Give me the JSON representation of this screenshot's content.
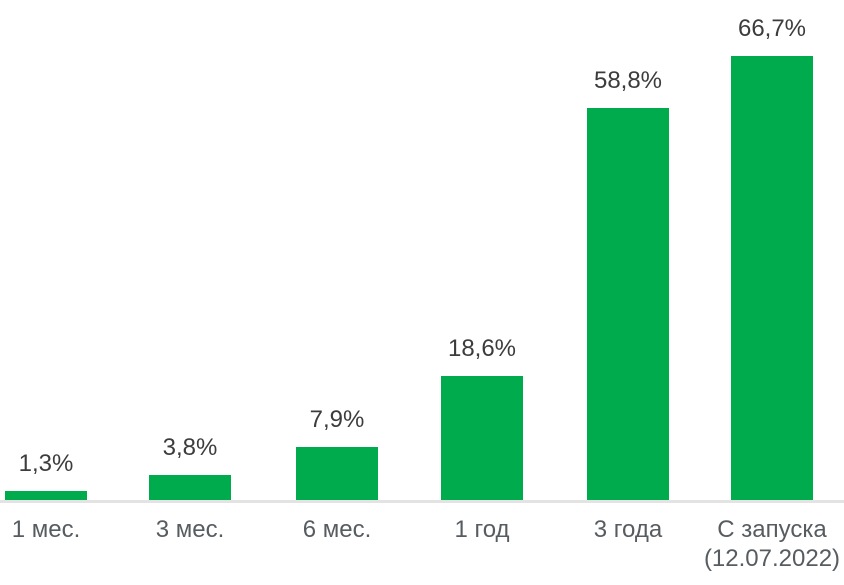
{
  "chart_data": {
    "type": "bar",
    "title": "",
    "xlabel": "",
    "ylabel": "",
    "categories": [
      "1 мес.",
      "3 мес.",
      "6 мес.",
      "1 год",
      "3 года",
      "С запуска\n(12.07.2022)"
    ],
    "values": [
      1.3,
      3.8,
      7.9,
      18.6,
      58.8,
      66.7
    ],
    "value_labels": [
      "1,3%",
      "3,8%",
      "7,9%",
      "18,6%",
      "58,8%",
      "66,7%"
    ],
    "ylim": [
      0,
      75
    ],
    "grid": false,
    "legend": false,
    "colors": {
      "bar": "#00AB4E",
      "value_label": "#3C3C3C",
      "category_label": "#575C60",
      "axis_line": "#E3E3E3",
      "background": "#FFFFFF"
    }
  }
}
